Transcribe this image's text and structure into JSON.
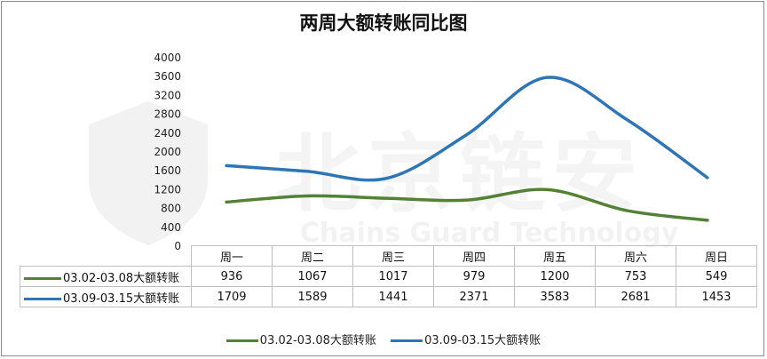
{
  "chart_data": {
    "type": "line",
    "title": "两周大额转账同比图",
    "categories": [
      "周一",
      "周二",
      "周三",
      "周四",
      "周五",
      "周六",
      "周日"
    ],
    "series": [
      {
        "name": "03.02-03.08大额转账",
        "color": "#548235",
        "values": [
          936,
          1067,
          1017,
          979,
          1200,
          753,
          549
        ]
      },
      {
        "name": "03.09-03.15大额转账",
        "color": "#2e75b6",
        "values": [
          1709,
          1589,
          1441,
          2371,
          3583,
          2681,
          1453
        ]
      }
    ],
    "ylim": [
      0,
      4000
    ],
    "yticks": [
      0,
      400,
      800,
      1200,
      1600,
      2000,
      2400,
      2800,
      3200,
      3600,
      4000
    ],
    "xlabel": "",
    "ylabel": "",
    "grid": false,
    "legend_placement": "bottom",
    "data_table": true
  },
  "watermark": {
    "main_text": "北京链安",
    "sub_text": "Chains Guard Technology"
  }
}
